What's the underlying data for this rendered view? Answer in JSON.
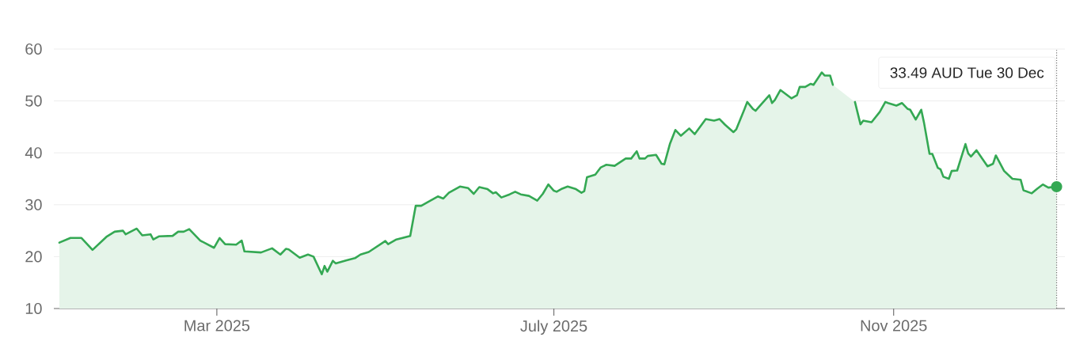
{
  "chart_data": {
    "type": "area",
    "x": [
      "2025-01-03",
      "2025-01-07",
      "2025-01-11",
      "2025-01-15",
      "2025-01-20",
      "2025-01-23",
      "2025-01-26",
      "2025-01-27",
      "2025-01-31",
      "2025-02-02",
      "2025-02-05",
      "2025-02-06",
      "2025-02-08",
      "2025-02-13",
      "2025-02-15",
      "2025-02-17",
      "2025-02-19",
      "2025-02-23",
      "2025-02-28",
      "2025-03-02",
      "2025-03-04",
      "2025-03-08",
      "2025-03-10",
      "2025-03-11",
      "2025-03-17",
      "2025-03-21",
      "2025-03-24",
      "2025-03-26",
      "2025-03-27",
      "2025-03-31",
      "2025-04-03",
      "2025-04-05",
      "2025-04-08",
      "2025-04-09",
      "2025-04-10",
      "2025-04-12",
      "2025-04-13",
      "2025-04-17",
      "2025-04-20",
      "2025-04-22",
      "2025-04-25",
      "2025-05-01",
      "2025-05-02",
      "2025-05-05",
      "2025-05-10",
      "2025-05-12",
      "2025-05-14",
      "2025-05-20",
      "2025-05-22",
      "2025-05-24",
      "2025-05-28",
      "2025-05-31",
      "2025-06-02",
      "2025-06-04",
      "2025-06-07",
      "2025-06-09",
      "2025-06-10",
      "2025-06-12",
      "2025-06-15",
      "2025-06-17",
      "2025-06-19",
      "2025-06-22",
      "2025-06-25",
      "2025-06-27",
      "2025-06-29",
      "2025-07-01",
      "2025-07-02",
      "2025-07-04",
      "2025-07-06",
      "2025-07-09",
      "2025-07-11",
      "2025-07-12",
      "2025-07-13",
      "2025-07-16",
      "2025-07-18",
      "2025-07-20",
      "2025-07-23",
      "2025-07-27",
      "2025-07-29",
      "2025-07-31",
      "2025-08-01",
      "2025-08-03",
      "2025-08-04",
      "2025-08-07",
      "2025-08-09",
      "2025-08-10",
      "2025-08-12",
      "2025-08-14",
      "2025-08-16",
      "2025-08-19",
      "2025-08-21",
      "2025-08-25",
      "2025-08-28",
      "2025-08-30",
      "2025-09-01",
      "2025-09-04",
      "2025-09-05",
      "2025-09-08",
      "2025-09-09",
      "2025-09-11",
      "2025-09-12",
      "2025-09-14",
      "2025-09-17",
      "2025-09-18",
      "2025-09-19",
      "2025-09-21",
      "2025-09-25",
      "2025-09-27",
      "2025-09-28",
      "2025-09-30",
      "2025-10-02",
      "2025-10-03",
      "2025-10-04",
      "2025-10-06",
      "2025-10-07",
      "2025-10-09",
      "2025-10-10",
      "2025-10-14",
      "2025-10-18",
      "2025-10-20",
      "2025-10-21",
      "2025-10-24",
      "2025-10-27",
      "2025-10-29",
      "2025-10-30",
      "2025-11-02",
      "2025-11-04",
      "2025-11-06",
      "2025-11-07",
      "2025-11-09",
      "2025-11-11",
      "2025-11-12",
      "2025-11-14",
      "2025-11-15",
      "2025-11-17",
      "2025-11-18",
      "2025-11-19",
      "2025-11-21",
      "2025-11-22",
      "2025-11-24",
      "2025-11-27",
      "2025-11-28",
      "2025-11-29",
      "2025-12-01",
      "2025-12-05",
      "2025-12-07",
      "2025-12-08",
      "2025-12-11",
      "2025-12-14",
      "2025-12-17",
      "2025-12-18",
      "2025-12-21",
      "2025-12-23",
      "2025-12-25",
      "2025-12-27",
      "2025-12-30"
    ],
    "series": [
      {
        "color": "#34a853",
        "values": [
          22.7,
          23.6,
          23.6,
          21.3,
          23.8,
          24.8,
          25.0,
          24.3,
          25.4,
          24.1,
          24.3,
          23.3,
          23.9,
          24.0,
          24.8,
          24.8,
          25.3,
          23.1,
          21.7,
          23.6,
          22.4,
          22.3,
          23.1,
          21.0,
          20.8,
          21.6,
          20.4,
          21.5,
          21.4,
          19.8,
          20.4,
          20.0,
          16.6,
          18.2,
          17.1,
          19.2,
          18.7,
          19.3,
          19.7,
          20.4,
          20.9,
          23.0,
          22.4,
          23.3,
          24.0,
          29.8,
          29.8,
          31.6,
          31.2,
          32.3,
          33.5,
          33.2,
          32.1,
          33.4,
          33.0,
          32.2,
          32.4,
          31.4,
          32.0,
          32.5,
          32.0,
          31.7,
          30.8,
          32.1,
          33.9,
          32.7,
          32.5,
          33.1,
          33.5,
          33.0,
          32.3,
          32.6,
          35.3,
          35.8,
          37.2,
          37.7,
          37.5,
          38.9,
          38.9,
          40.3,
          38.9,
          38.9,
          39.4,
          39.6,
          37.9,
          37.8,
          41.7,
          44.4,
          43.3,
          44.7,
          43.6,
          46.5,
          46.2,
          46.5,
          45.4,
          44.0,
          44.5,
          48.4,
          49.8,
          48.5,
          48.1,
          49.3,
          51.1,
          49.6,
          50.2,
          52.1,
          50.5,
          51.1,
          52.7,
          52.7,
          53.3,
          53.1,
          53.9,
          55.5,
          54.9,
          54.9,
          53.1,
          null,
          49.8,
          45.5,
          46.2,
          45.9,
          47.9,
          49.8,
          49.6,
          49.1,
          49.6,
          48.5,
          48.3,
          46.4,
          48.3,
          45.8,
          39.8,
          39.8,
          37.1,
          36.8,
          35.4,
          35.0,
          36.5,
          36.6,
          41.7,
          39.9,
          39.3,
          40.5,
          37.4,
          37.9,
          39.5,
          36.5,
          35.0,
          34.8,
          32.8,
          32.2,
          33.1,
          33.9,
          33.3,
          33.49
        ]
      }
    ],
    "xlim": [
      "2025-01-01",
      "2026-01-02"
    ],
    "xticks": [
      {
        "value": "2025-03-01",
        "label": "Mar 2025"
      },
      {
        "value": "2025-07-01",
        "label": "July 2025"
      },
      {
        "value": "2025-11-01",
        "label": "Nov 2025"
      }
    ],
    "ylim": [
      10,
      60
    ],
    "yticks": [
      10,
      20,
      30,
      40,
      50,
      60
    ],
    "grid": "y",
    "ref_lines": [
      {
        "axis": "x",
        "value": "2025-12-30",
        "line_style": "dotted",
        "color": "#757575"
      }
    ],
    "annotations": [
      "33.49 AUD  Tue 30 Dec"
    ]
  }
}
